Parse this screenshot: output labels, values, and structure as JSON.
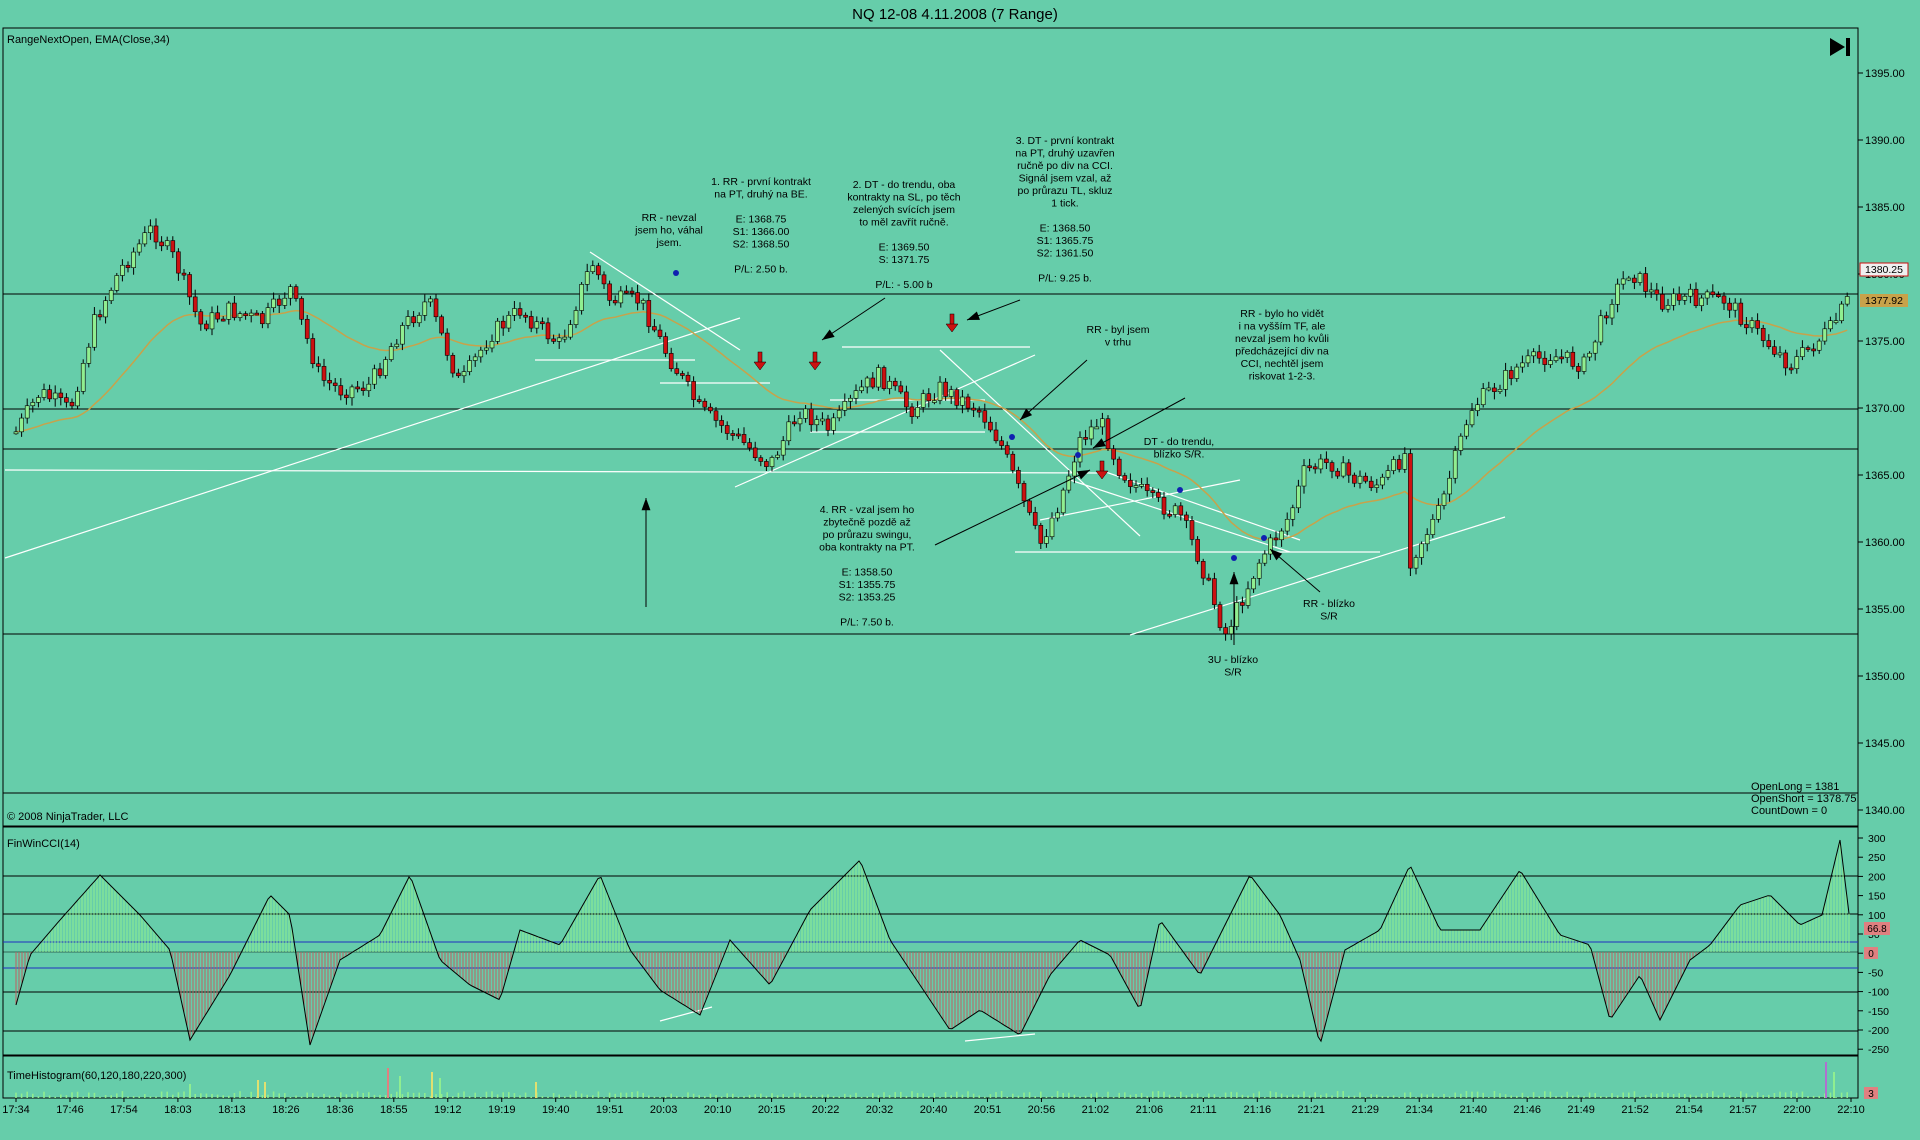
{
  "window": {
    "title": "NQ 12-08  4.11.2008 (7 Range)"
  },
  "colors": {
    "background": "#66CDAA",
    "up_candle": "#90EE90",
    "down_candle": "#CC1111",
    "ema": "#C8A24A",
    "cci_pos": "#90EE90",
    "cci_neg": "#C06060",
    "grid_blue": "#2030C0"
  },
  "panels": {
    "price": {
      "label": "RangeNextOpen, EMA(Close,34)",
      "copyright": "© 2008 NinjaTrader, LLC",
      "axis_ticks": [
        "1395.00",
        "1390.00",
        "1385.00",
        "1380.00",
        "1375.00",
        "1370.00",
        "1365.00",
        "1360.00",
        "1355.00",
        "1350.00",
        "1345.00",
        "1340.00"
      ],
      "last_price": "1380.25",
      "ema_value": "1377.92",
      "status": [
        "OpenLong = 1381",
        "OpenShort = 1378.75",
        "CountDown = 0"
      ],
      "play_button_icon": "skip-end-icon"
    },
    "cci": {
      "label": "FinWinCCI(14)",
      "axis_ticks": [
        "300",
        "250",
        "200",
        "150",
        "100",
        "50",
        "0",
        "-50",
        "-100",
        "-150",
        "-200",
        "-250"
      ],
      "value_badge": "66.8",
      "zero_badge": "0"
    },
    "histogram": {
      "label": "TimeHistogram(60,120,180,220,300)",
      "value_badge": "3"
    }
  },
  "time_axis": [
    "17:34",
    "17:46",
    "17:54",
    "18:03",
    "18:13",
    "18:26",
    "18:36",
    "18:55",
    "19:12",
    "19:19",
    "19:40",
    "19:51",
    "20:03",
    "20:10",
    "20:15",
    "20:22",
    "20:32",
    "20:40",
    "20:51",
    "20:56",
    "21:02",
    "21:06",
    "21:11",
    "21:16",
    "21:21",
    "21:29",
    "21:34",
    "21:40",
    "21:46",
    "21:49",
    "21:52",
    "21:54",
    "21:57",
    "22:00",
    "22:10"
  ],
  "annotations": {
    "a1": [
      "RR - nevzal",
      "jsem ho, váhal",
      "jsem."
    ],
    "a2": [
      "1. RR - první kontrakt",
      "na PT, druhý na BE.",
      "",
      "E: 1368.75",
      "S1: 1366.00",
      "S2: 1368.50",
      "",
      "P/L: 2.50 b."
    ],
    "a3": [
      "2. DT - do trendu, oba",
      "kontrakty na SL, po těch",
      "zelených svících jsem",
      "to měl zavřít ručně.",
      "",
      "E: 1369.50",
      "S: 1371.75",
      "",
      "P/L: - 5.00 b"
    ],
    "a4": [
      "3. DT - první kontrakt",
      "na PT, druhý uzavřen",
      "ručně po div na CCI.",
      "Signál jsem vzal, až",
      "po průrazu TL, skluz",
      "1 tick.",
      "",
      "E: 1368.50",
      "S1: 1365.75",
      "S2: 1361.50",
      "",
      "P/L: 9.25 b."
    ],
    "a5": [
      "RR - byl jsem",
      "v trhu"
    ],
    "a6": [
      "RR - bylo ho vidět",
      "i na vyšším TF, ale",
      "nevzal jsem ho kvůli",
      "předcházející div na",
      "CCI, nechtěl jsem",
      "riskovat 1-2-3."
    ],
    "a7": [
      "DT - do trendu,",
      "blízko S/R."
    ],
    "a8": [
      "4. RR - vzal jsem ho",
      "zbytečně pozdě až",
      "po průrazu swingu,",
      "oba kontrakty na PT.",
      "",
      "E: 1358.50",
      "S1: 1355.75",
      "S2: 1353.25",
      "",
      "P/L: 7.50 b."
    ],
    "a9": [
      "RR - blízko",
      "S/R"
    ],
    "a10": [
      "3U - blízko",
      "S/R"
    ]
  }
}
